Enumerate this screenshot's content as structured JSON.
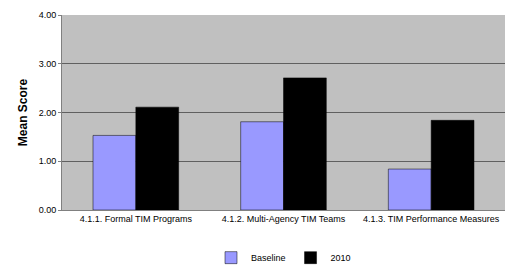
{
  "chart_data": {
    "type": "bar",
    "y_label": "Mean Score",
    "categories": [
      "4.1.1. Formal TIM Programs",
      "4.1.2. Multi-Agency TIM Teams",
      "4.1.3. TIM Performance Measures"
    ],
    "series": [
      {
        "name": "Baseline",
        "color": "#9999ff",
        "values": [
          1.53,
          1.81,
          0.84
        ]
      },
      {
        "name": "2010",
        "color": "#000000",
        "values": [
          2.11,
          2.71,
          1.84
        ]
      }
    ],
    "ylim": [
      0,
      4
    ],
    "yticks": [
      {
        "value": 0,
        "label": "0.00"
      },
      {
        "value": 1,
        "label": "1.00"
      },
      {
        "value": 2,
        "label": "2.00"
      },
      {
        "value": 3,
        "label": "3.00"
      },
      {
        "value": 4,
        "label": "4.00"
      }
    ],
    "grid": true,
    "legend": "bottom"
  }
}
